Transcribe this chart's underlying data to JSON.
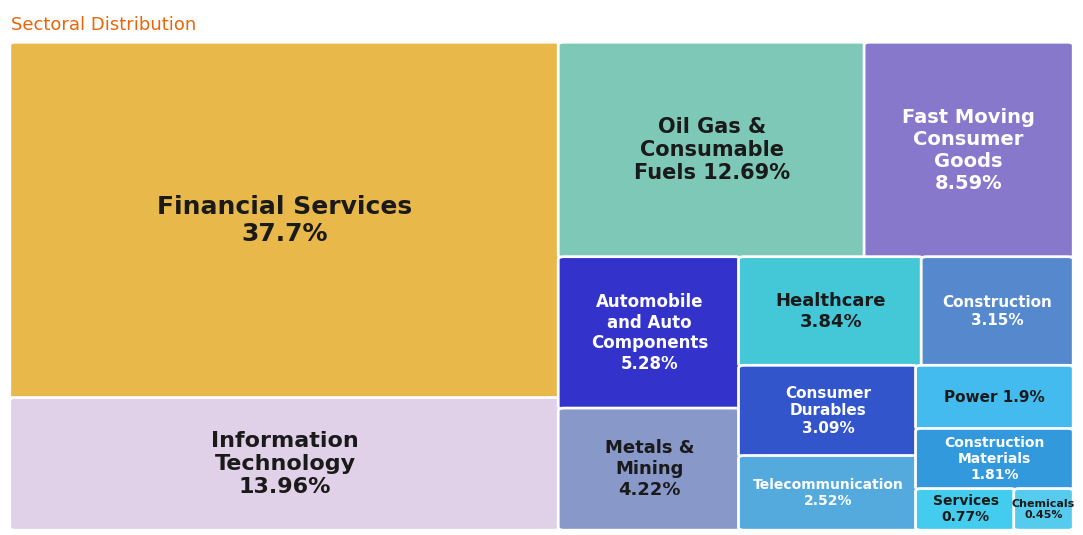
{
  "title": "Sectoral Distribution",
  "title_color": "#e8650a",
  "sectors": [
    {
      "name": "Financial Services\n37.7%",
      "value": 37.7,
      "color": "#E8B84B",
      "text_color": "#1a1a1a",
      "fontsize": 18
    },
    {
      "name": "Information\nTechnology\n13.96%",
      "value": 13.96,
      "color": "#E0D0E8",
      "text_color": "#1a1a1a",
      "fontsize": 16
    },
    {
      "name": "Oil Gas &\nConsumable\nFuels 12.69%",
      "value": 12.69,
      "color": "#7EC8B8",
      "text_color": "#1a1a1a",
      "fontsize": 15
    },
    {
      "name": "Fast Moving\nConsumer\nGoods\n8.59%",
      "value": 8.59,
      "color": "#8878CC",
      "text_color": "#ffffff",
      "fontsize": 14
    },
    {
      "name": "Automobile\nand Auto\nComponents\n5.28%",
      "value": 5.28,
      "color": "#3333CC",
      "text_color": "#ffffff",
      "fontsize": 12
    },
    {
      "name": "Metals &\nMining\n4.22%",
      "value": 4.22,
      "color": "#8898C8",
      "text_color": "#1a1a1a",
      "fontsize": 13
    },
    {
      "name": "Healthcare\n3.84%",
      "value": 3.84,
      "color": "#44C8D8",
      "text_color": "#1a1a1a",
      "fontsize": 13
    },
    {
      "name": "Construction\n3.15%",
      "value": 3.15,
      "color": "#5588CC",
      "text_color": "#ffffff",
      "fontsize": 11
    },
    {
      "name": "Consumer\nDurables\n3.09%",
      "value": 3.09,
      "color": "#3355CC",
      "text_color": "#ffffff",
      "fontsize": 11
    },
    {
      "name": "Telecommunication\n2.52%",
      "value": 2.52,
      "color": "#55AADD",
      "text_color": "#ffffff",
      "fontsize": 10
    },
    {
      "name": "Power 1.9%",
      "value": 1.9,
      "color": "#44BBEE",
      "text_color": "#1a1a1a",
      "fontsize": 11
    },
    {
      "name": "Construction\nMaterials\n1.81%",
      "value": 1.81,
      "color": "#3399DD",
      "text_color": "#ffffff",
      "fontsize": 10
    },
    {
      "name": "Services\n0.77%",
      "value": 0.77,
      "color": "#44CCEE",
      "text_color": "#1a1a1a",
      "fontsize": 10
    },
    {
      "name": "Chemicals\n0.45%",
      "value": 0.45,
      "color": "#55CCEE",
      "text_color": "#1a1a1a",
      "fontsize": 8
    }
  ],
  "background_color": "#ffffff",
  "figsize": [
    10.83,
    5.35
  ],
  "dpi": 100
}
